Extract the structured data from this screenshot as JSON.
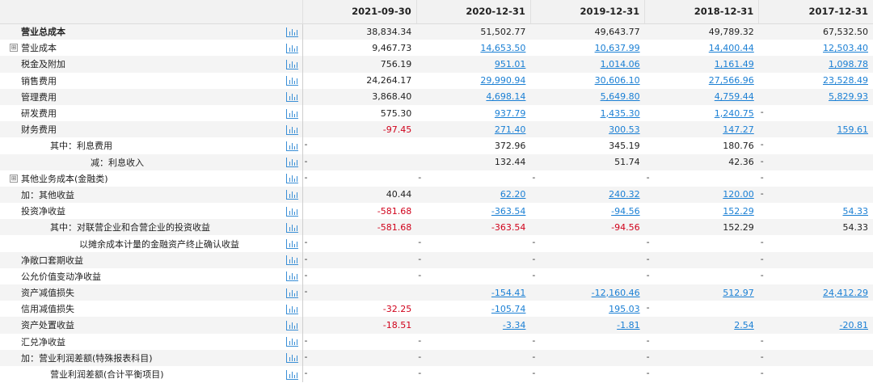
{
  "header": {
    "dates": [
      "2021-09-30",
      "2020-12-31",
      "2019-12-31",
      "2018-12-31",
      "2017-12-31"
    ]
  },
  "rows": [
    {
      "label": "营业总成本",
      "indent": 1,
      "bold": true,
      "expand": false,
      "vals": [
        {
          "v": "38,834.34"
        },
        {
          "v": "51,502.77"
        },
        {
          "v": "49,643.77"
        },
        {
          "v": "49,789.32"
        },
        {
          "v": "67,532.50"
        }
      ]
    },
    {
      "label": "营业成本",
      "indent": 1,
      "bold": false,
      "expand": true,
      "vals": [
        {
          "v": "9,467.73"
        },
        {
          "v": "14,653.50",
          "link": true
        },
        {
          "v": "10,637.99",
          "link": true
        },
        {
          "v": "14,400.44",
          "link": true
        },
        {
          "v": "12,503.40",
          "link": true
        }
      ]
    },
    {
      "label": "税金及附加",
      "indent": 1,
      "bold": false,
      "expand": false,
      "vals": [
        {
          "v": "756.19"
        },
        {
          "v": "951.01",
          "link": true
        },
        {
          "v": "1,014.06",
          "link": true
        },
        {
          "v": "1,161.49",
          "link": true
        },
        {
          "v": "1,098.78",
          "link": true
        }
      ]
    },
    {
      "label": "销售费用",
      "indent": 1,
      "bold": false,
      "expand": false,
      "vals": [
        {
          "v": "24,264.17"
        },
        {
          "v": "29,990.94",
          "link": true
        },
        {
          "v": "30,606.10",
          "link": true
        },
        {
          "v": "27,566.96",
          "link": true
        },
        {
          "v": "23,528.49",
          "link": true
        }
      ]
    },
    {
      "label": "管理费用",
      "indent": 1,
      "bold": false,
      "expand": false,
      "vals": [
        {
          "v": "3,868.40"
        },
        {
          "v": "4,698.14",
          "link": true
        },
        {
          "v": "5,649.80",
          "link": true
        },
        {
          "v": "4,759.44",
          "link": true
        },
        {
          "v": "5,829.93",
          "link": true
        }
      ]
    },
    {
      "label": "研发费用",
      "indent": 1,
      "bold": false,
      "expand": false,
      "vals": [
        {
          "v": "575.30"
        },
        {
          "v": "937.79",
          "link": true
        },
        {
          "v": "1,435.30",
          "link": true
        },
        {
          "v": "1,240.75",
          "link": true
        },
        {
          "v": "",
          "dash": true
        }
      ]
    },
    {
      "label": "财务费用",
      "indent": 1,
      "bold": false,
      "expand": false,
      "vals": [
        {
          "v": "-97.45",
          "neg": true
        },
        {
          "v": "271.40",
          "link": true
        },
        {
          "v": "300.53",
          "link": true
        },
        {
          "v": "147.27",
          "link": true
        },
        {
          "v": "159.61",
          "link": true
        }
      ]
    },
    {
      "label": "其中：利息费用",
      "indent": 3,
      "bold": false,
      "expand": false,
      "vals": [
        {
          "v": "",
          "dash": true
        },
        {
          "v": "372.96"
        },
        {
          "v": "345.19"
        },
        {
          "v": "180.76"
        },
        {
          "v": "",
          "dash": true
        }
      ]
    },
    {
      "label": "减：利息收入",
      "indent": 4,
      "bold": false,
      "expand": false,
      "vals": [
        {
          "v": "",
          "dash": true
        },
        {
          "v": "132.44"
        },
        {
          "v": "51.74"
        },
        {
          "v": "42.36"
        },
        {
          "v": "",
          "dash": true
        }
      ]
    },
    {
      "label": "其他业务成本(金融类)",
      "indent": 1,
      "bold": false,
      "expand": true,
      "vals": [
        {
          "v": "",
          "dash": true
        },
        {
          "v": "",
          "dash": true
        },
        {
          "v": "",
          "dash": true
        },
        {
          "v": "",
          "dash": true
        },
        {
          "v": "",
          "dash": true
        }
      ]
    },
    {
      "label": "加：其他收益",
      "indent": 1,
      "bold": false,
      "expand": false,
      "vals": [
        {
          "v": "40.44"
        },
        {
          "v": "62.20",
          "link": true
        },
        {
          "v": "240.32",
          "link": true
        },
        {
          "v": "120.00",
          "link": true
        },
        {
          "v": "",
          "dash": true
        }
      ]
    },
    {
      "label": "投资净收益",
      "indent": 1,
      "bold": false,
      "expand": false,
      "vals": [
        {
          "v": "-581.68",
          "neg": true
        },
        {
          "v": "-363.54",
          "link": true
        },
        {
          "v": "-94.56",
          "link": true
        },
        {
          "v": "152.29",
          "link": true
        },
        {
          "v": "54.33",
          "link": true
        }
      ]
    },
    {
      "label": "其中：对联营企业和合营企业的投资收益",
      "indent": 3,
      "bold": false,
      "expand": false,
      "vals": [
        {
          "v": "-581.68",
          "neg": true
        },
        {
          "v": "-363.54",
          "neg": true
        },
        {
          "v": "-94.56",
          "neg": true
        },
        {
          "v": "152.29"
        },
        {
          "v": "54.33"
        }
      ]
    },
    {
      "label": "以摊余成本计量的金融资产终止确认收益",
      "indent": 5,
      "bold": false,
      "expand": false,
      "vals": [
        {
          "v": "",
          "dash": true
        },
        {
          "v": "",
          "dash": true
        },
        {
          "v": "",
          "dash": true
        },
        {
          "v": "",
          "dash": true
        },
        {
          "v": "",
          "dash": true
        }
      ]
    },
    {
      "label": "净敞口套期收益",
      "indent": 1,
      "bold": false,
      "expand": false,
      "vals": [
        {
          "v": "",
          "dash": true
        },
        {
          "v": "",
          "dash": true
        },
        {
          "v": "",
          "dash": true
        },
        {
          "v": "",
          "dash": true
        },
        {
          "v": "",
          "dash": true
        }
      ]
    },
    {
      "label": "公允价值变动净收益",
      "indent": 1,
      "bold": false,
      "expand": false,
      "vals": [
        {
          "v": "",
          "dash": true
        },
        {
          "v": "",
          "dash": true
        },
        {
          "v": "",
          "dash": true
        },
        {
          "v": "",
          "dash": true
        },
        {
          "v": "",
          "dash": true
        }
      ]
    },
    {
      "label": "资产减值损失",
      "indent": 1,
      "bold": false,
      "expand": false,
      "vals": [
        {
          "v": "",
          "dash": true
        },
        {
          "v": "-154.41",
          "link": true
        },
        {
          "v": "-12,160.46",
          "link": true
        },
        {
          "v": "512.97",
          "link": true
        },
        {
          "v": "24,412.29",
          "link": true
        }
      ]
    },
    {
      "label": "信用减值损失",
      "indent": 1,
      "bold": false,
      "expand": false,
      "vals": [
        {
          "v": "-32.25",
          "neg": true
        },
        {
          "v": "-105.74",
          "link": true
        },
        {
          "v": "195.03",
          "link": true
        },
        {
          "v": "",
          "dash": true
        },
        {
          "v": ""
        }
      ]
    },
    {
      "label": "资产处置收益",
      "indent": 1,
      "bold": false,
      "expand": false,
      "vals": [
        {
          "v": "-18.51",
          "neg": true
        },
        {
          "v": "-3.34",
          "link": true
        },
        {
          "v": "-1.81",
          "link": true
        },
        {
          "v": "2.54",
          "link": true
        },
        {
          "v": "-20.81",
          "link": true
        }
      ]
    },
    {
      "label": "汇兑净收益",
      "indent": 1,
      "bold": false,
      "expand": false,
      "vals": [
        {
          "v": "",
          "dash": true
        },
        {
          "v": "",
          "dash": true
        },
        {
          "v": "",
          "dash": true
        },
        {
          "v": "",
          "dash": true
        },
        {
          "v": "",
          "dash": true
        }
      ]
    },
    {
      "label": "加：营业利润差额(特殊报表科目)",
      "indent": 1,
      "bold": false,
      "expand": false,
      "vals": [
        {
          "v": "",
          "dash": true
        },
        {
          "v": "",
          "dash": true
        },
        {
          "v": "",
          "dash": true
        },
        {
          "v": "",
          "dash": true
        },
        {
          "v": "",
          "dash": true
        }
      ]
    },
    {
      "label": "营业利润差额(合计平衡项目)",
      "indent": 2,
      "bold": false,
      "expand": false,
      "vals": [
        {
          "v": "",
          "dash": true
        },
        {
          "v": "",
          "dash": true
        },
        {
          "v": "",
          "dash": true
        },
        {
          "v": "",
          "dash": true
        },
        {
          "v": "",
          "dash": true
        }
      ]
    }
  ],
  "glyphs": {
    "expand": "⊞",
    "dash": "-"
  },
  "colors": {
    "negative": "#d0021b",
    "link": "#1a7fd4",
    "chart_icon": "#3a8fd6"
  }
}
